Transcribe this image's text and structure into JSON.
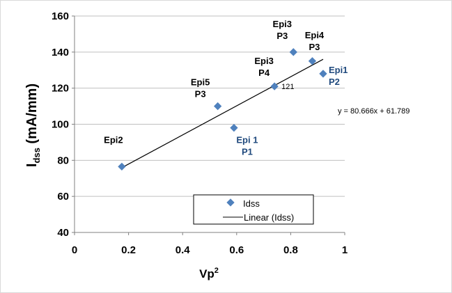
{
  "chart_data": {
    "type": "scatter",
    "xlabel_main": "Vp",
    "xlabel_sup": "2",
    "ylabel_main": "I",
    "ylabel_sub": "dss",
    "ylabel_unit": " (mA/mm)",
    "xlim": [
      0,
      1
    ],
    "ylim": [
      40,
      160
    ],
    "xticks": [
      0,
      0.2,
      0.4,
      0.6,
      0.8,
      1
    ],
    "xtick_labels": [
      "0",
      "0.2",
      "0.4",
      "0.6",
      "0.8",
      "1"
    ],
    "yticks": [
      40,
      60,
      80,
      100,
      120,
      140,
      160
    ],
    "ytick_labels": [
      "40",
      "60",
      "80",
      "100",
      "120",
      "140",
      "160"
    ],
    "grid": "horizontal",
    "marker_color": "#4f81bd",
    "blue_label_color": "#1f497d",
    "series": [
      {
        "name": "Idss",
        "points": [
          {
            "x": 0.175,
            "y": 76.5,
            "label": [
              "Epi2"
            ]
          },
          {
            "x": 0.53,
            "y": 110,
            "label": [
              "Epi5",
              "P3"
            ]
          },
          {
            "x": 0.59,
            "y": 98,
            "label": [
              "Epi 1",
              "P1"
            ]
          },
          {
            "x": 0.74,
            "y": 121,
            "label": [
              "Epi3",
              "P4"
            ],
            "value_label": "121"
          },
          {
            "x": 0.81,
            "y": 140,
            "label": [
              "Epi3",
              "P3"
            ]
          },
          {
            "x": 0.88,
            "y": 135,
            "label": [
              "Epi4",
              "P3"
            ]
          },
          {
            "x": 0.92,
            "y": 128,
            "label": [
              "Epi1",
              "P2"
            ]
          }
        ]
      }
    ],
    "trendline": {
      "name": "Linear (Idss)",
      "slope": 80.666,
      "intercept": 61.789,
      "x_range": [
        0.175,
        0.92
      ],
      "equation": "y = 80.666x + 61.789"
    },
    "legend": {
      "placement": "bottom-right",
      "entries": [
        "Idss",
        "Linear (Idss)"
      ]
    }
  }
}
